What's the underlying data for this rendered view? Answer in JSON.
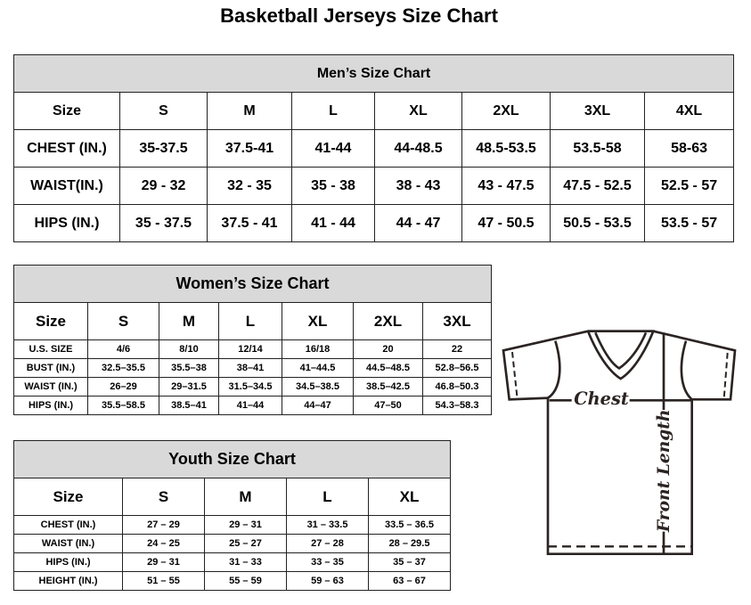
{
  "title": "Basketball Jerseys Size Chart",
  "men": {
    "title": "Men’s Size Chart",
    "header": [
      "Size",
      "S",
      "M",
      "L",
      "XL",
      "2XL",
      "3XL",
      "4XL"
    ],
    "rows": [
      [
        "CHEST (IN.)",
        "35-37.5",
        "37.5-41",
        "41-44",
        "44-48.5",
        "48.5-53.5",
        "53.5-58",
        "58-63"
      ],
      [
        "WAIST(IN.)",
        "29 - 32",
        "32 - 35",
        "35 - 38",
        "38 - 43",
        "43 - 47.5",
        "47.5 - 52.5",
        "52.5 - 57"
      ],
      [
        "HIPS (IN.)",
        "35 - 37.5",
        "37.5 - 41",
        "41 - 44",
        "44 - 47",
        "47 - 50.5",
        "50.5 - 53.5",
        "53.5 - 57"
      ]
    ]
  },
  "women": {
    "title": "Women’s Size Chart",
    "header": [
      "Size",
      "S",
      "M",
      "L",
      "XL",
      "2XL",
      "3XL"
    ],
    "rows": [
      [
        "U.S.  SIZE",
        "4/6",
        "8/10",
        "12/14",
        "16/18",
        "20",
        "22"
      ],
      [
        "BUST  (IN.)",
        "32.5–35.5",
        "35.5–38",
        "38–41",
        "41–44.5",
        "44.5–48.5",
        "52.8–56.5"
      ],
      [
        "WAIST  (IN.)",
        "26–29",
        "29–31.5",
        "31.5–34.5",
        "34.5–38.5",
        "38.5–42.5",
        "46.8–50.3"
      ],
      [
        "HIPS  (IN.)",
        "35.5–58.5",
        "38.5–41",
        "41–44",
        "44–47",
        "47–50",
        "54.3–58.3"
      ]
    ]
  },
  "youth": {
    "title": "Youth Size Chart",
    "header": [
      "Size",
      "S",
      "M",
      "L",
      "XL"
    ],
    "rows": [
      [
        "CHEST  (IN.)",
        "27  –  29",
        "29  –  31",
        "31  –  33.5",
        "33.5  –  36.5"
      ],
      [
        "WAIST  (IN.)",
        "24  –  25",
        "25  –  27",
        "27  –  28",
        "28  –  29.5"
      ],
      [
        "HIPS  (IN.)",
        "29  –  31",
        "31  –  33",
        "33  –  35",
        "35  –  37"
      ],
      [
        "HEIGHT  (IN.)",
        "51  –  55",
        "55  –  59",
        "59  –  63",
        "63  –  67"
      ]
    ]
  },
  "diagram": {
    "chest_label": "Chest",
    "length_label": "Front Length",
    "line_color": "#2b2422"
  }
}
